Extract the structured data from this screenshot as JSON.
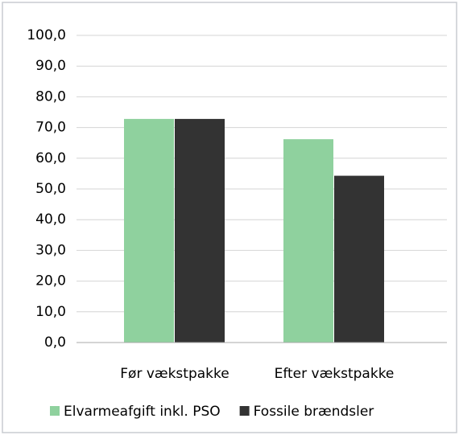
{
  "chart_data": {
    "type": "bar",
    "categories": [
      "Før vækstpakke",
      "Efter vækstpakke"
    ],
    "series": [
      {
        "name": "Elvarmeafgift inkl. PSO",
        "color": "#8fd19e",
        "values": [
          72.8,
          66.2
        ]
      },
      {
        "name": "Fossile brændsler",
        "color": "#333333",
        "values": [
          72.8,
          54.3
        ]
      }
    ],
    "ylim": [
      0,
      100
    ],
    "yticks": [
      {
        "value": 0,
        "label": "0,0"
      },
      {
        "value": 10,
        "label": "10,0"
      },
      {
        "value": 20,
        "label": "20,0"
      },
      {
        "value": 30,
        "label": "30,0"
      },
      {
        "value": 40,
        "label": "40,0"
      },
      {
        "value": 50,
        "label": "50,0"
      },
      {
        "value": 60,
        "label": "60,0"
      },
      {
        "value": 70,
        "label": "70,0"
      },
      {
        "value": 80,
        "label": "80,0"
      },
      {
        "value": 90,
        "label": "90,0"
      },
      {
        "value": 100,
        "label": "100,0"
      }
    ],
    "grid": true,
    "legend": "bottom"
  }
}
